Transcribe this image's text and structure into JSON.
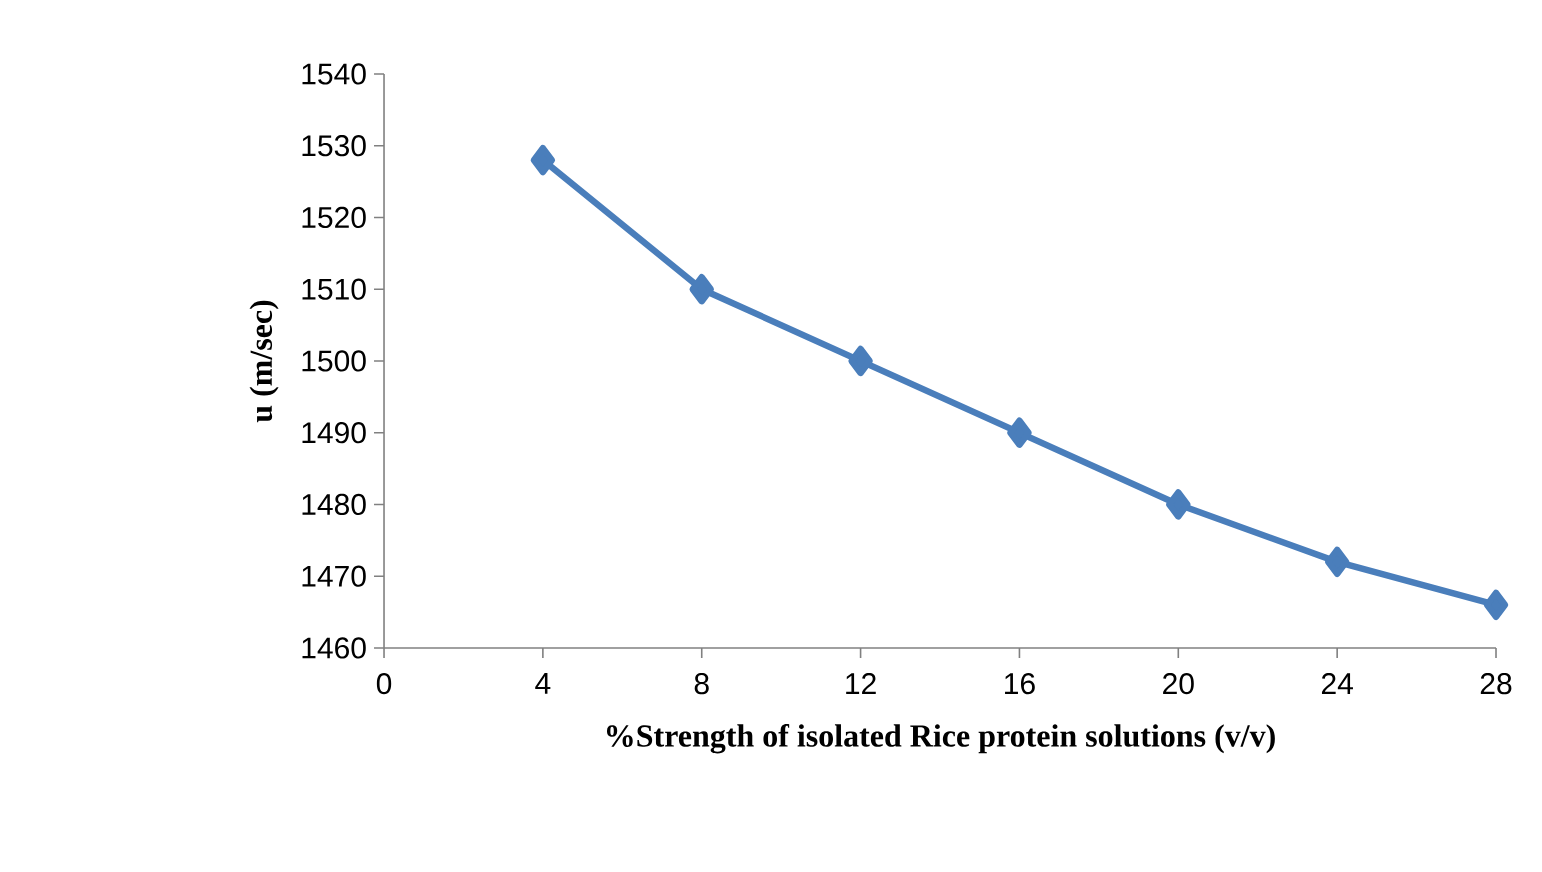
{
  "chart_data": {
    "type": "line",
    "xlabel": "%Strength of isolated Rice protein solutions  (v/v)",
    "ylabel": "u (m/sec)",
    "x": [
      4,
      8,
      12,
      16,
      20,
      24,
      28
    ],
    "series": [
      {
        "color": "#4a7ebb",
        "values": [
          1528,
          1510,
          1500,
          1490,
          1480,
          1472,
          1466
        ]
      }
    ],
    "xlim": [
      0,
      28
    ],
    "xticks": [
      0,
      4,
      8,
      12,
      16,
      20,
      24,
      28
    ],
    "ylim": [
      1460,
      1540
    ],
    "yticks": [
      1460,
      1470,
      1480,
      1490,
      1500,
      1510,
      1520,
      1530,
      1540
    ],
    "marker": "diamond",
    "line_style": "solid",
    "grid": false
  }
}
